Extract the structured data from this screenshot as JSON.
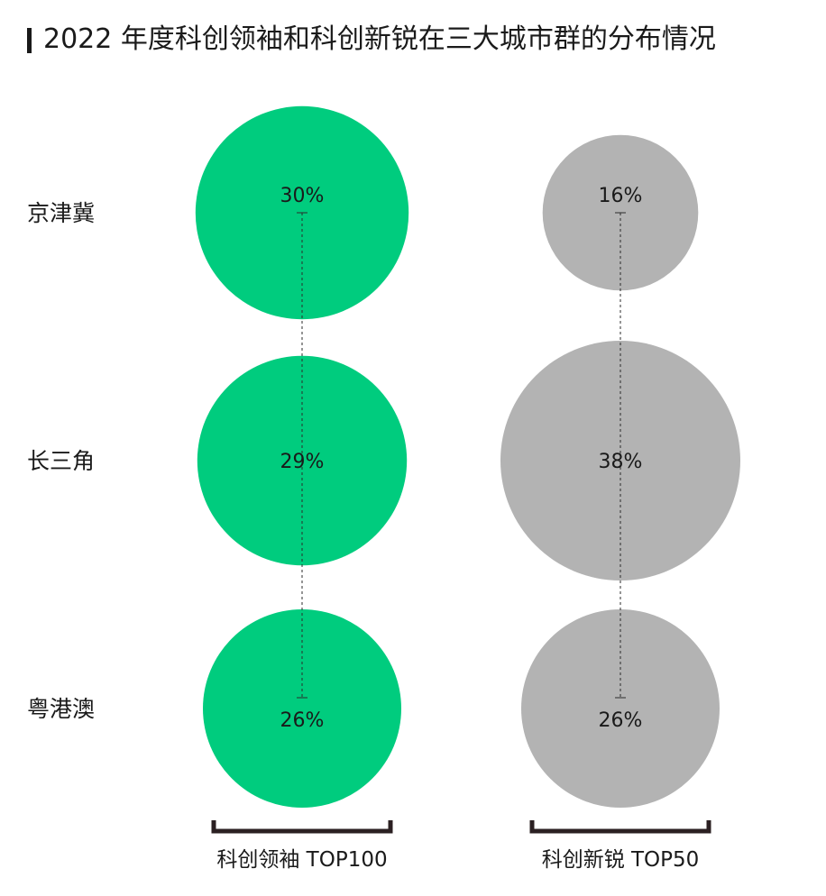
{
  "title": "2022 年度科创领袖和科创新锐在三大城市群的分布情况",
  "chart_data": {
    "type": "bubble",
    "title": "2022 年度科创领袖和科创新锐在三大城市群的分布情况",
    "categories": [
      "京津冀",
      "长三角",
      "粤港澳"
    ],
    "series": [
      {
        "name": "科创领袖 TOP100",
        "values": [
          30,
          29,
          26
        ],
        "labels": [
          "30%",
          "29%",
          "26%"
        ],
        "color": "#00cc7e"
      },
      {
        "name": "科创新锐 TOP50",
        "values": [
          16,
          38,
          26
        ],
        "labels": [
          "16%",
          "38%",
          "26%"
        ],
        "color": "#b3b3b3"
      }
    ],
    "unit": "%",
    "connector_style": "dashed",
    "bracket_color": "#2b2022"
  }
}
